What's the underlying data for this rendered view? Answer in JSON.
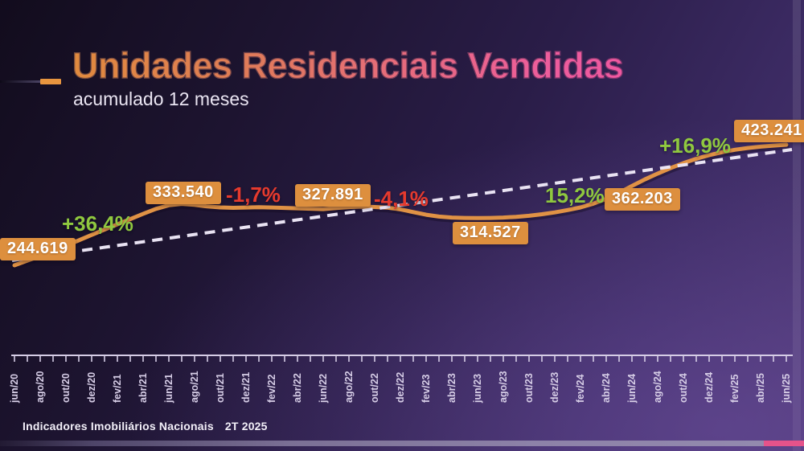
{
  "header": {
    "title": "Unidades Residenciais Vendidas",
    "subtitle": "acumulado 12 meses"
  },
  "footer": {
    "source": "Indicadores Imobiliários Nacionais",
    "period": "2T 2025"
  },
  "colors": {
    "line": "#e09245",
    "line_shadow": "rgba(20,12,35,0.45)",
    "trend": "#e9e3f3",
    "badge_bg": "#dd8f3e",
    "positive": "#8fc83f",
    "negative": "#e63a2d",
    "axis": "#d6cde6"
  },
  "chart_data": {
    "type": "line",
    "title": "Unidades Residenciais Vendidas",
    "subtitle": "acumulado 12 meses",
    "x_tick_labels": [
      "jun/20",
      "ago/20",
      "out/20",
      "dez/20",
      "fev/21",
      "abr/21",
      "jun/21",
      "ago/21",
      "out/21",
      "dez/21",
      "fev/22",
      "abr/22",
      "jun/22",
      "ago/22",
      "out/22",
      "dez/22",
      "fev/23",
      "abr/23",
      "jun/23",
      "ago/23",
      "out/23",
      "dez/23",
      "fev/24",
      "abr/24",
      "jun/24",
      "ago/24",
      "out/24",
      "dez/24",
      "fev/25",
      "abr/25",
      "jun/25"
    ],
    "y_axis": {
      "visible": false,
      "approx_range": [
        230000,
        440000
      ]
    },
    "labeled_points": [
      {
        "month": "jun/20",
        "value": 244619,
        "display": "244.619"
      },
      {
        "month": "jun/21",
        "value": 333540,
        "display": "333.540"
      },
      {
        "month": "jun/22",
        "value": 327891,
        "display": "327.891"
      },
      {
        "month": "jun/23",
        "value": 314527,
        "display": "314.527"
      },
      {
        "month": "jun/24",
        "value": 362203,
        "display": "362.203"
      },
      {
        "month": "jun/25",
        "value": 423241,
        "display": "423.241"
      }
    ],
    "pct_changes": [
      {
        "label": "+36,4%",
        "sign": "positive",
        "from": "jun/20",
        "to": "jun/21"
      },
      {
        "label": "-1,7%",
        "sign": "negative",
        "from": "jun/21",
        "to": "jun/22"
      },
      {
        "label": "-4,1%",
        "sign": "negative",
        "from": "jun/22",
        "to": "jun/23"
      },
      {
        "label": "15,2%",
        "sign": "positive",
        "from": "jun/23",
        "to": "jun/24"
      },
      {
        "label": "+16,9%",
        "sign": "positive",
        "from": "jun/24",
        "to": "jun/25"
      }
    ],
    "series_monthly_estimated": [
      244619,
      251500,
      258300,
      265800,
      273600,
      281600,
      289600,
      297500,
      305200,
      313000,
      320800,
      328200,
      333540,
      335600,
      334200,
      331800,
      330300,
      329800,
      330200,
      330600,
      330200,
      329700,
      329100,
      328500,
      327891,
      329500,
      330800,
      331600,
      331000,
      330000,
      327500,
      323500,
      319500,
      316800,
      315300,
      314800,
      314527,
      314800,
      315400,
      316400,
      318000,
      320200,
      323000,
      326400,
      330400,
      336000,
      343000,
      352000,
      362203,
      371800,
      380500,
      388600,
      396000,
      402400,
      407800,
      412200,
      415700,
      418400,
      420400,
      421900,
      423241
    ],
    "trendline": {
      "style": "dashed",
      "estimated_start_value": 251800,
      "estimated_end_value": 416100
    },
    "legend": "none",
    "grid": "off"
  }
}
